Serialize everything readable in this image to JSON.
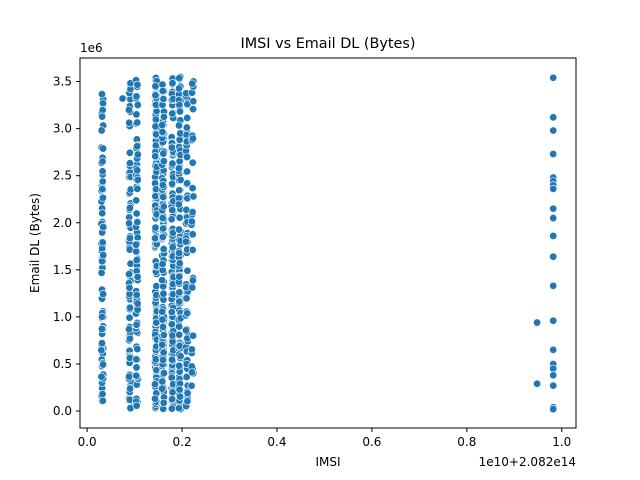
{
  "chart_data": {
    "type": "scatter",
    "title": "IMSI vs Email DL (Bytes)",
    "xlabel": "IMSI",
    "ylabel": "Email DL (Bytes)",
    "x_offset_label": "1e10+2.082e14",
    "y_multiplier_label": "1e6",
    "xlim": [
      -0.015,
      1.03
    ],
    "ylim": [
      -0.18,
      3.75
    ],
    "x_ticks": [
      0.0,
      0.2,
      0.4,
      0.6,
      0.8,
      1.0
    ],
    "x_tick_labels": [
      "0.0",
      "0.2",
      "0.4",
      "0.6",
      "0.8",
      "1.0"
    ],
    "y_ticks": [
      0.0,
      0.5,
      1.0,
      1.5,
      2.0,
      2.5,
      3.0,
      3.5
    ],
    "y_tick_labels": [
      "0.0",
      "0.5",
      "1.0",
      "1.5",
      "2.0",
      "2.5",
      "3.0",
      "3.5"
    ],
    "marker_color": "#1f77b4",
    "grid": false,
    "clusters": [
      {
        "x": 0.032,
        "y_min": 0.08,
        "y_max": 3.52,
        "count": 90
      },
      {
        "x": 0.075,
        "y_min": 3.32,
        "y_max": 3.32,
        "count": 1
      },
      {
        "x": 0.09,
        "y_min": 0.02,
        "y_max": 3.5,
        "count": 85
      },
      {
        "x": 0.105,
        "y_min": 0.05,
        "y_max": 3.52,
        "count": 80
      },
      {
        "x": 0.145,
        "y_min": 0.02,
        "y_max": 3.58,
        "count": 180
      },
      {
        "x": 0.16,
        "y_min": 0.02,
        "y_max": 3.55,
        "count": 160
      },
      {
        "x": 0.18,
        "y_min": 0.02,
        "y_max": 3.58,
        "count": 170
      },
      {
        "x": 0.195,
        "y_min": 0.02,
        "y_max": 3.58,
        "count": 120
      },
      {
        "x": 0.21,
        "y_min": 0.05,
        "y_max": 3.4,
        "count": 70
      },
      {
        "x": 0.222,
        "y_min": 0.26,
        "y_max": 3.58,
        "count": 30
      }
    ],
    "points": [
      {
        "x": 0.948,
        "y": 0.94
      },
      {
        "x": 0.948,
        "y": 0.29
      },
      {
        "x": 0.982,
        "y": 3.54
      },
      {
        "x": 0.982,
        "y": 3.12
      },
      {
        "x": 0.982,
        "y": 2.98
      },
      {
        "x": 0.982,
        "y": 2.73
      },
      {
        "x": 0.982,
        "y": 2.48
      },
      {
        "x": 0.982,
        "y": 2.44
      },
      {
        "x": 0.982,
        "y": 2.4
      },
      {
        "x": 0.982,
        "y": 2.36
      },
      {
        "x": 0.982,
        "y": 2.15
      },
      {
        "x": 0.982,
        "y": 2.05
      },
      {
        "x": 0.982,
        "y": 1.86
      },
      {
        "x": 0.982,
        "y": 1.64
      },
      {
        "x": 0.982,
        "y": 1.33
      },
      {
        "x": 0.982,
        "y": 0.96
      },
      {
        "x": 0.982,
        "y": 0.65
      },
      {
        "x": 0.982,
        "y": 0.5
      },
      {
        "x": 0.982,
        "y": 0.45
      },
      {
        "x": 0.982,
        "y": 0.38
      },
      {
        "x": 0.982,
        "y": 0.27
      },
      {
        "x": 0.982,
        "y": 0.04
      },
      {
        "x": 0.982,
        "y": 0.02
      }
    ]
  }
}
